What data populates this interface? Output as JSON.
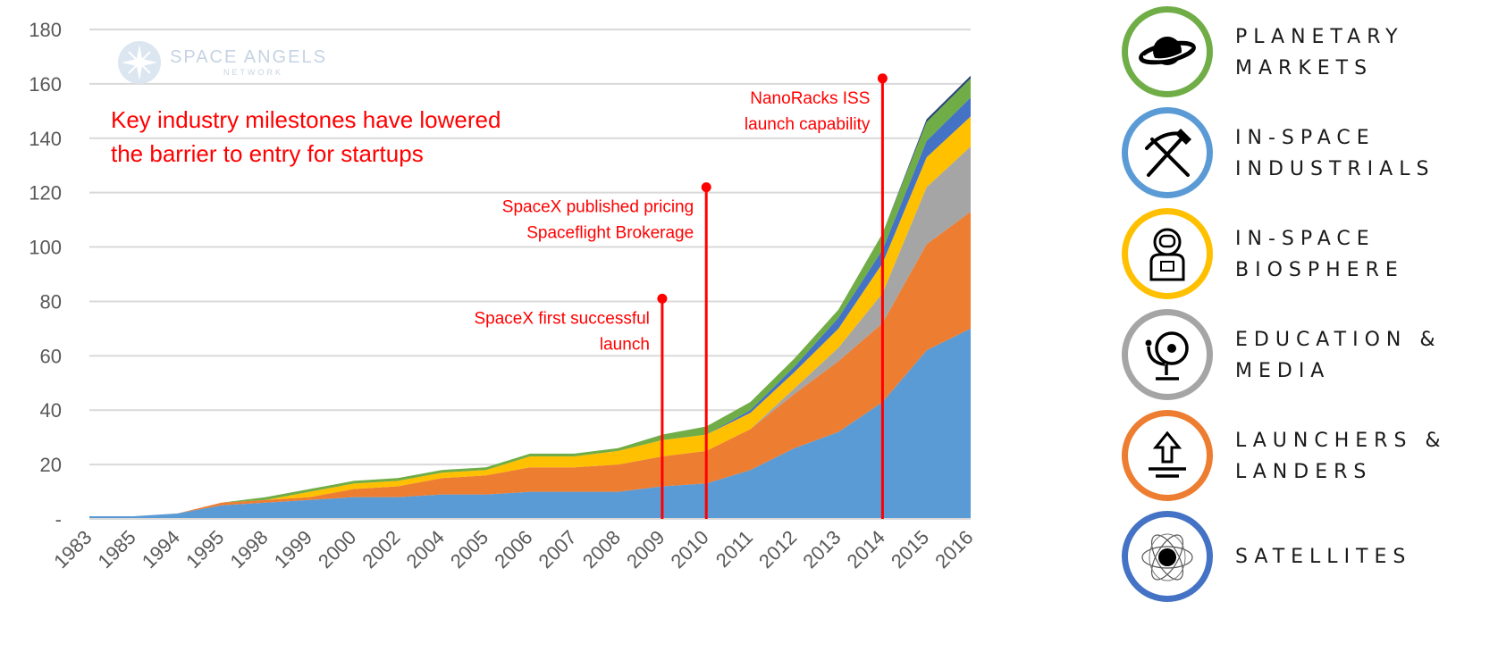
{
  "logo": {
    "name": "SPACE ANGELS",
    "sub": "NETWORK"
  },
  "headline": [
    "Key industry milestones have lowered",
    "the barrier to entry for startups"
  ],
  "milestones": [
    {
      "category": "2009",
      "top": 81,
      "lines": [
        "SpaceX first successful",
        "launch"
      ]
    },
    {
      "category": "2010",
      "top": 122,
      "lines": [
        "SpaceX published pricing",
        "Spaceflight Brokerage"
      ]
    },
    {
      "category": "2014",
      "top": 162,
      "lines": [
        "NanoRacks ISS",
        "launch capability"
      ]
    }
  ],
  "legend": [
    {
      "label": "PLANETARY\nMARKETS",
      "color": "#70ad47",
      "icon": "planet-icon"
    },
    {
      "label": "IN-SPACE\nINDUSTRIALS",
      "color": "#5b9bd5",
      "icon": "pickaxe-shovel-icon"
    },
    {
      "label": "IN-SPACE\nBIOSPHERE",
      "color": "#ffc000",
      "icon": "astronaut-icon"
    },
    {
      "label": "EDUCATION &\nMEDIA",
      "color": "#a5a5a5",
      "icon": "satellite-dish-icon"
    },
    {
      "label": "LAUNCHERS &\nLANDERS",
      "color": "#ed7d31",
      "icon": "launch-arrow-icon"
    },
    {
      "label": "SATELLITES",
      "color": "#4472c4",
      "icon": "globe-orbit-icon"
    }
  ],
  "chart_data": {
    "type": "area",
    "stacked": true,
    "categories": [
      "1983",
      "1985",
      "1994",
      "1995",
      "1998",
      "1999",
      "2000",
      "2002",
      "2004",
      "2005",
      "2006",
      "2007",
      "2008",
      "2009",
      "2010",
      "2011",
      "2012",
      "2013",
      "2014",
      "2015",
      "2016"
    ],
    "ylim": [
      0,
      180
    ],
    "yticks": [
      0,
      20,
      40,
      60,
      80,
      100,
      120,
      140,
      160,
      180
    ],
    "yticklabels": [
      "-",
      "20",
      "40",
      "60",
      "80",
      "100",
      "120",
      "140",
      "160",
      "180"
    ],
    "grid": true,
    "series": [
      {
        "color": "#5b9bd5",
        "values": [
          1,
          1,
          2,
          5,
          6,
          7,
          8,
          8,
          9,
          9,
          10,
          10,
          10,
          12,
          13,
          18,
          26,
          32,
          43,
          62,
          70
        ]
      },
      {
        "color": "#ed7d31",
        "values": [
          0,
          0,
          0,
          1,
          1,
          1,
          3,
          4,
          6,
          7,
          9,
          9,
          10,
          11,
          12,
          15,
          20,
          26,
          29,
          39,
          43
        ]
      },
      {
        "color": "#a5a5a5",
        "values": [
          0,
          0,
          0,
          0,
          0,
          0,
          0,
          0,
          0,
          0,
          0,
          0,
          0,
          0,
          0,
          0,
          2,
          5,
          11,
          21,
          24
        ]
      },
      {
        "color": "#ffc000",
        "values": [
          0,
          0,
          0,
          0,
          0,
          2,
          2,
          2,
          2,
          2,
          4,
          4,
          5,
          6,
          6,
          6,
          6,
          7,
          11,
          11,
          11
        ]
      },
      {
        "color": "#4472c4",
        "values": [
          0,
          0,
          0,
          0,
          0,
          0,
          0,
          0,
          0,
          0,
          0,
          0,
          0,
          0,
          0,
          1,
          2,
          4,
          5,
          6,
          7
        ]
      },
      {
        "color": "#70ad47",
        "values": [
          0,
          0,
          0,
          0,
          1,
          1,
          1,
          1,
          1,
          1,
          1,
          1,
          1,
          2,
          3,
          3,
          3,
          3,
          6,
          7,
          7
        ]
      },
      {
        "color": "#264478",
        "values": [
          0,
          0,
          0,
          0,
          0,
          0,
          0,
          0,
          0,
          0,
          0,
          0,
          0,
          0,
          0,
          0,
          0,
          0,
          0,
          1,
          1
        ]
      }
    ]
  }
}
